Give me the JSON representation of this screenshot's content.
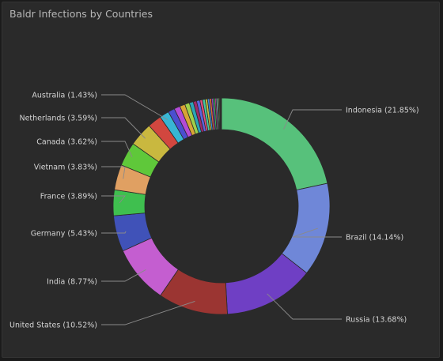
{
  "panel": {
    "title": "Baldr Infections by Countries"
  },
  "colors": {
    "background": "#2a2a2a",
    "leader": "#8a8a8a"
  },
  "chart_data": {
    "type": "pie",
    "donut": true,
    "title": "Baldr Infections by Countries",
    "legend": "none",
    "slices": [
      {
        "label": "Indonesia (21.85%)",
        "name": "Indonesia",
        "value": 21.85,
        "color": "#57c17b",
        "show_label": true
      },
      {
        "label": "Brazil (14.14%)",
        "name": "Brazil",
        "value": 14.14,
        "color": "#6f87d8",
        "show_label": true
      },
      {
        "label": "Russia (13.68%)",
        "name": "Russia",
        "value": 13.68,
        "color": "#6f3fc4",
        "show_label": true
      },
      {
        "label": "United States (10.52%)",
        "name": "United States",
        "value": 10.52,
        "color": "#9b3532",
        "show_label": true
      },
      {
        "label": "India (8.77%)",
        "name": "India",
        "value": 8.77,
        "color": "#c45ed0",
        "show_label": true
      },
      {
        "label": "Germany (5.43%)",
        "name": "Germany",
        "value": 5.43,
        "color": "#4052b8",
        "show_label": true
      },
      {
        "label": "France (3.89%)",
        "name": "France",
        "value": 3.89,
        "color": "#3fbf4f",
        "show_label": true
      },
      {
        "label": "Vietnam (3.83%)",
        "name": "Vietnam",
        "value": 3.83,
        "color": "#e0a062",
        "show_label": true
      },
      {
        "label": "Canada (3.62%)",
        "name": "Canada",
        "value": 3.62,
        "color": "#5fc83a",
        "show_label": true
      },
      {
        "label": "Netherlands (3.59%)",
        "name": "Netherlands",
        "value": 3.59,
        "color": "#c9b83f",
        "show_label": true
      },
      {
        "label": "",
        "name": "",
        "value": 2.1,
        "color": "#d2473f",
        "show_label": false
      },
      {
        "label": "Australia (1.43%)",
        "name": "Australia",
        "value": 1.43,
        "color": "#38b6d4",
        "show_label": true
      },
      {
        "label": "",
        "name": "",
        "value": 1.0,
        "color": "#4b4fd0",
        "show_label": false
      },
      {
        "label": "",
        "name": "",
        "value": 0.9,
        "color": "#b44bd6",
        "show_label": false
      },
      {
        "label": "",
        "name": "",
        "value": 0.8,
        "color": "#d8a436",
        "show_label": false
      },
      {
        "label": "",
        "name": "",
        "value": 0.7,
        "color": "#9ed14a",
        "show_label": false
      },
      {
        "label": "",
        "name": "",
        "value": 0.6,
        "color": "#2aa5b8",
        "show_label": false
      },
      {
        "label": "",
        "name": "",
        "value": 0.5,
        "color": "#a02a6a",
        "show_label": false
      },
      {
        "label": "",
        "name": "",
        "value": 0.5,
        "color": "#5a64e0",
        "show_label": false
      },
      {
        "label": "",
        "name": "",
        "value": 0.4,
        "color": "#e04f7a",
        "show_label": false
      },
      {
        "label": "",
        "name": "",
        "value": 0.4,
        "color": "#44c7a3",
        "show_label": false
      },
      {
        "label": "",
        "name": "",
        "value": 0.35,
        "color": "#c7c03d",
        "show_label": false
      },
      {
        "label": "",
        "name": "",
        "value": 0.3,
        "color": "#3d8fe0",
        "show_label": false
      },
      {
        "label": "",
        "name": "",
        "value": 0.3,
        "color": "#e06a3d",
        "show_label": false
      },
      {
        "label": "",
        "name": "",
        "value": 0.25,
        "color": "#8f3dc7",
        "show_label": false
      },
      {
        "label": "",
        "name": "",
        "value": 0.25,
        "color": "#3dc76a",
        "show_label": false
      },
      {
        "label": "",
        "name": "",
        "value": 0.2,
        "color": "#c73d8f",
        "show_label": false
      },
      {
        "label": "",
        "name": "",
        "value": 0.2,
        "color": "#7ac7e0",
        "show_label": false
      },
      {
        "label": "",
        "name": "",
        "value": 0.15,
        "color": "#e0c77a",
        "show_label": false
      },
      {
        "label": "",
        "name": "",
        "value": 0.15,
        "color": "#6ae07a",
        "show_label": false
      },
      {
        "label": "",
        "name": "",
        "value": 0.12,
        "color": "#d86060",
        "show_label": false
      },
      {
        "label": "",
        "name": "",
        "value": 0.1,
        "color": "#6060d8",
        "show_label": false
      },
      {
        "label": "",
        "name": "",
        "value": 0.08,
        "color": "#60d8d8",
        "show_label": false
      }
    ]
  }
}
